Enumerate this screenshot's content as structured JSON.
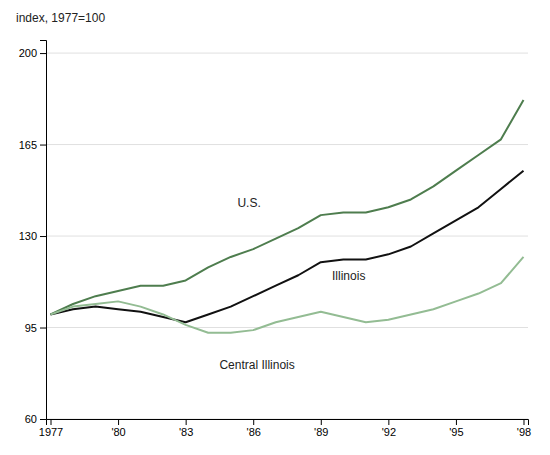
{
  "chart_data": {
    "type": "line",
    "title": "index, 1977=100",
    "x": [
      1977,
      1978,
      1979,
      1980,
      1981,
      1982,
      1983,
      1984,
      1985,
      1986,
      1987,
      1988,
      1989,
      1990,
      1991,
      1992,
      1993,
      1994,
      1995,
      1996,
      1997,
      1998
    ],
    "series": [
      {
        "color": "#4e7d4e",
        "values": [
          100,
          104,
          107,
          109,
          111,
          111,
          113,
          118,
          122,
          125,
          129,
          133,
          138,
          139,
          139,
          141,
          144,
          149,
          155,
          161,
          167,
          182
        ]
      },
      {
        "color": "#111111",
        "values": [
          100,
          102,
          103,
          102,
          101,
          99,
          97,
          100,
          103,
          107,
          111,
          115,
          120,
          121,
          121,
          123,
          126,
          131,
          136,
          141,
          148,
          155
        ]
      },
      {
        "color": "#93bc93",
        "values": [
          100,
          103,
          104,
          105,
          103,
          100,
          96,
          93,
          93,
          94,
          97,
          99,
          101,
          99,
          97,
          98,
          100,
          102,
          105,
          108,
          112,
          122
        ]
      }
    ],
    "annotations": [
      {
        "text": "U.S.",
        "x": 1985.3,
        "y": 141
      },
      {
        "text": "Illinois",
        "x": 1989.5,
        "y": 113
      },
      {
        "text": "Central Illinois",
        "x": 1984.5,
        "y": 79
      }
    ],
    "xlim": [
      1976.8,
      1998.2
    ],
    "xticks": [
      1977,
      {
        "value": 1980,
        "label": "'80"
      },
      {
        "value": 1983,
        "label": "'83"
      },
      {
        "value": 1986,
        "label": "'86"
      },
      {
        "value": 1989,
        "label": "'89"
      },
      {
        "value": 1992,
        "label": "'92"
      },
      {
        "value": 1995,
        "label": "'95"
      },
      {
        "value": 1998,
        "label": "'98"
      }
    ],
    "ylim": [
      60,
      205
    ],
    "yticks": [
      60,
      95,
      130,
      165,
      200
    ],
    "grid": true
  }
}
